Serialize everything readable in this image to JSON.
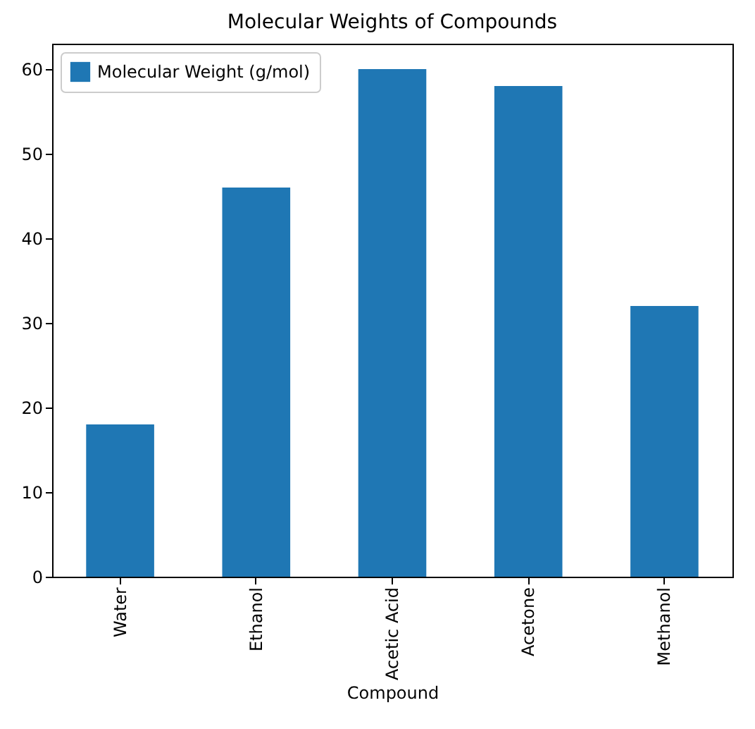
{
  "chart_data": {
    "type": "bar",
    "title": "Molecular Weights of Compounds",
    "xlabel": "Compound",
    "categories": [
      "Water",
      "Ethanol",
      "Acetic Acid",
      "Acetone",
      "Methanol"
    ],
    "series": [
      {
        "name": "Molecular Weight (g/mol)",
        "color": "#1f77b4",
        "values": [
          18,
          46,
          60,
          58,
          32
        ]
      }
    ],
    "ylim": [
      0,
      63
    ],
    "yticks": [
      0,
      10,
      20,
      30,
      40,
      50,
      60
    ],
    "grid": false,
    "legend": "top left"
  }
}
